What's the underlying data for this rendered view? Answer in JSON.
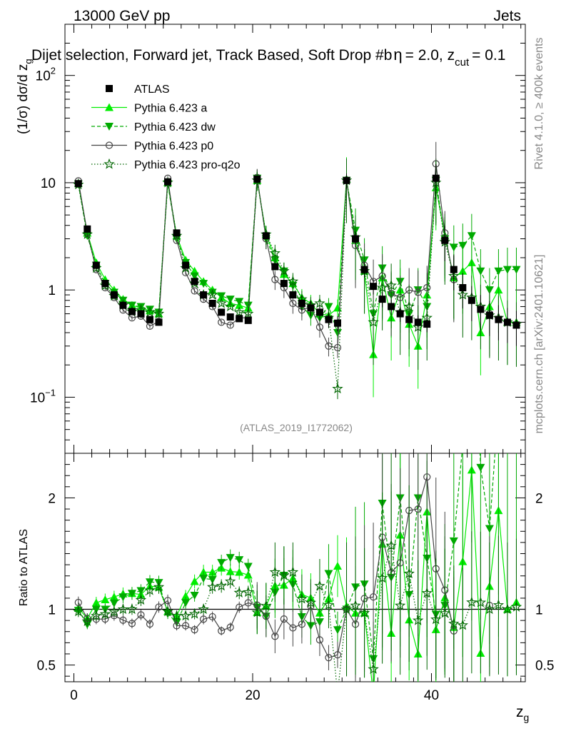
{
  "header": {
    "energy": "13000 GeV pp",
    "category": "Jets",
    "selection": "Dijet selection, Forward jet, Track Based, Soft Drop #b",
    "beta_part": "= 2.0, z",
    "beta_sym": "η",
    "zcut_sub": "cut",
    "zcut_val": "= 0.1"
  },
  "side": {
    "rivet": "Rivet 4.1.0, ≥ 400k events",
    "mcplots": "mcplots.cern.ch [arXiv:2401.10621]"
  },
  "analysis_id": "(ATLAS_2019_I1772062)",
  "axes": {
    "ylabel_main": "(1/σ) dσ/d z",
    "ylabel_main_sub": "g",
    "ylabel_ratio": "Ratio to ATLAS",
    "xlabel": "z",
    "xlabel_sub": "g",
    "main_ticks": [
      {
        "value": 0.1,
        "label": "10",
        "sup": "−1"
      },
      {
        "value": 1,
        "label": "1",
        "sup": ""
      },
      {
        "value": 10,
        "label": "10",
        "sup": ""
      },
      {
        "value": 100,
        "label": "10",
        "sup": "2"
      }
    ],
    "ratio_ticks": [
      {
        "value": 0.5,
        "label": "0.5"
      },
      {
        "value": 1,
        "label": "1"
      },
      {
        "value": 2,
        "label": "2"
      }
    ],
    "x_ticks": [
      {
        "value": 0,
        "label": "0"
      },
      {
        "value": 20,
        "label": "20"
      },
      {
        "value": 40,
        "label": "40"
      }
    ]
  },
  "colors": {
    "data": "#000000",
    "a": "#00ee00",
    "dw": "#00aa00",
    "p0": "#444444",
    "pro": "#006600"
  },
  "legend": [
    {
      "key": "data",
      "label": "ATLAS"
    },
    {
      "key": "a",
      "label": "Pythia 6.423 a"
    },
    {
      "key": "dw",
      "label": "Pythia 6.423 dw"
    },
    {
      "key": "p0",
      "label": "Pythia 6.423 p0"
    },
    {
      "key": "pro",
      "label": "Pythia 6.423 pro-q2o"
    }
  ],
  "chart_data": {
    "type": "line",
    "title": "Dijet selection, Forward jet, Track Based, Soft Drop #b = 2.0, z_cut = 0.1",
    "xlabel": "z_g",
    "ylabel": "(1/σ) dσ/d z_g",
    "xlim": [
      -1,
      50.5
    ],
    "ylim": [
      0.03,
      300
    ],
    "yscale": "log",
    "ratio_ylim": [
      0.35,
      2.4
    ],
    "x": [
      0.5,
      1.5,
      2.5,
      3.5,
      4.5,
      5.5,
      6.5,
      7.5,
      8.5,
      9.5,
      10.5,
      11.5,
      12.5,
      13.5,
      14.5,
      15.5,
      16.5,
      17.5,
      18.5,
      19.5,
      20.5,
      21.5,
      22.5,
      23.5,
      24.5,
      25.5,
      26.5,
      27.5,
      28.5,
      29.5,
      30.5,
      31.5,
      32.5,
      33.5,
      34.5,
      35.5,
      36.5,
      37.5,
      38.5,
      39.5,
      40.5,
      41.5,
      42.5,
      43.5,
      44.5,
      45.5,
      46.5,
      47.5,
      48.5,
      49.5
    ],
    "series": [
      {
        "key": "data",
        "name": "ATLAS",
        "values": [
          9.8,
          3.7,
          1.7,
          1.15,
          0.9,
          0.72,
          0.63,
          0.6,
          0.53,
          0.5,
          10.2,
          3.4,
          1.7,
          1.2,
          0.9,
          0.75,
          0.62,
          0.56,
          0.54,
          0.52,
          10.8,
          3.2,
          1.65,
          1.15,
          0.9,
          0.75,
          0.68,
          0.62,
          0.53,
          0.49,
          10.5,
          3.0,
          1.55,
          1.08,
          0.82,
          0.7,
          0.6,
          0.53,
          0.5,
          0.48,
          11.0,
          2.9,
          1.55,
          1.05,
          0.8,
          0.66,
          0.58,
          0.53,
          0.5,
          0.47
        ]
      },
      {
        "key": "a",
        "name": "Pythia 6.423 a",
        "values": [
          9.9,
          3.4,
          1.8,
          1.25,
          1.0,
          0.82,
          0.72,
          0.68,
          0.64,
          0.6,
          10.0,
          3.2,
          1.9,
          1.5,
          1.2,
          1.0,
          0.85,
          0.75,
          0.72,
          0.68,
          10.5,
          3.3,
          2.0,
          1.4,
          1.15,
          0.85,
          0.75,
          0.6,
          0.58,
          0.68,
          10.8,
          2.9,
          1.5,
          0.25,
          1.3,
          0.55,
          1.0,
          0.48,
          0.3,
          0.9,
          9.0,
          3.2,
          1.3,
          1.5,
          1.8,
          0.4,
          0.7,
          1.0,
          0.5,
          0.5
        ]
      },
      {
        "key": "dw",
        "name": "Pythia 6.423 dw",
        "values": [
          9.7,
          3.2,
          1.7,
          1.15,
          0.95,
          0.8,
          0.72,
          0.7,
          0.66,
          0.62,
          9.8,
          3.0,
          1.8,
          1.35,
          1.15,
          0.95,
          0.88,
          0.82,
          0.78,
          0.72,
          11.0,
          3.0,
          1.9,
          1.5,
          1.1,
          0.7,
          0.58,
          0.55,
          0.7,
          0.4,
          10.5,
          3.6,
          1.9,
          0.6,
          1.6,
          0.9,
          1.2,
          0.6,
          1.0,
          0.7,
          10.5,
          3.0,
          2.5,
          2.6,
          3.2,
          1.5,
          1.0,
          1.5,
          1.55,
          1.55
        ]
      },
      {
        "key": "p0",
        "name": "Pythia 6.423 p0",
        "values": [
          10.4,
          3.4,
          1.55,
          1.05,
          0.85,
          0.65,
          0.55,
          0.57,
          0.46,
          0.51,
          11.0,
          2.9,
          1.45,
          0.98,
          0.82,
          0.7,
          0.5,
          0.47,
          0.55,
          0.55,
          11.2,
          3.0,
          1.25,
          1.05,
          0.75,
          0.65,
          0.7,
          0.45,
          0.3,
          0.29,
          10.5,
          2.6,
          1.7,
          1.2,
          1.35,
          0.93,
          0.85,
          1.0,
          0.95,
          1.05,
          15.0,
          3.4,
          1.25,
          null,
          null,
          null,
          0.6,
          null,
          null,
          null
        ]
      },
      {
        "key": "pro",
        "name": "Pythia 6.423 pro-q2o",
        "values": [
          9.6,
          3.3,
          1.6,
          1.1,
          0.88,
          0.72,
          0.63,
          0.65,
          0.62,
          0.6,
          10.0,
          3.2,
          1.6,
          1.15,
          0.9,
          0.9,
          0.75,
          0.7,
          0.62,
          0.6,
          10.5,
          3.3,
          2.2,
          1.5,
          1.2,
          0.82,
          0.72,
          0.75,
          0.55,
          0.12,
          10.5,
          3.1,
          1.5,
          0.5,
          1.05,
          1.1,
          0.62,
          0.7,
          0.45,
          0.55,
          10.0,
          2.8,
          1.35,
          0.9,
          0.85,
          0.7,
          0.58,
          0.55,
          0.5,
          0.48
        ]
      }
    ]
  }
}
